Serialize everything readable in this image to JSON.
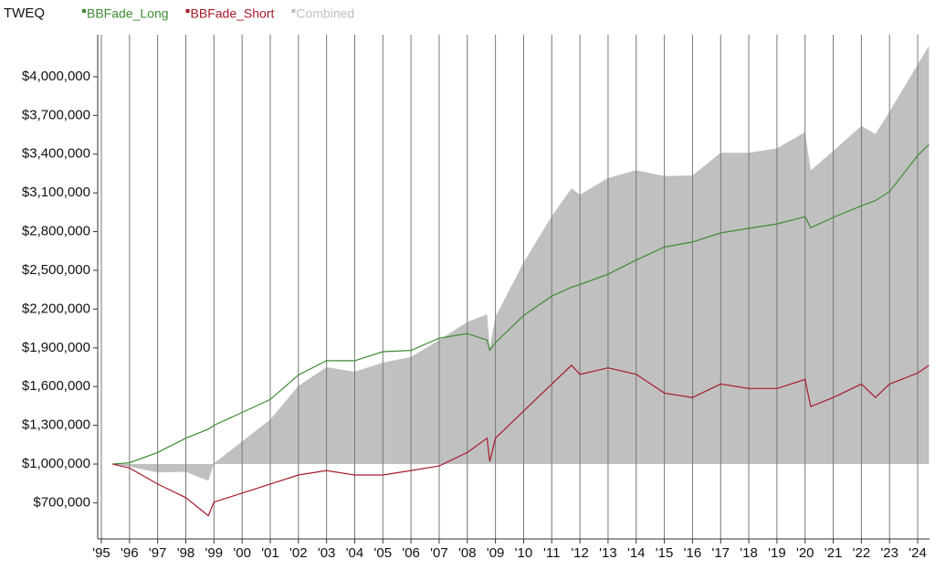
{
  "chart_data": {
    "type": "line",
    "title": "TWEQ",
    "x": [
      1995.4,
      1996,
      1997,
      1998,
      1998.8,
      1999,
      2000,
      2001,
      2002,
      2003,
      2004,
      2005,
      2006,
      2007,
      2008,
      2008.7,
      2008.8,
      2009,
      2010,
      2011,
      2011.7,
      2012,
      2013,
      2014,
      2015,
      2016,
      2017,
      2018,
      2019,
      2020,
      2020.2,
      2021,
      2022,
      2022.5,
      2023,
      2024,
      2024.4
    ],
    "series": [
      {
        "name": "BBFade_Long",
        "color": "#3f8a33",
        "values": [
          1000000,
          1010000,
          1090000,
          1200000,
          1270000,
          1300000,
          1400000,
          1500000,
          1690000,
          1800000,
          1800000,
          1870000,
          1880000,
          1975000,
          2010000,
          1960000,
          1880000,
          1940000,
          2150000,
          2300000,
          2370000,
          2390000,
          2470000,
          2580000,
          2680000,
          2720000,
          2790000,
          2825000,
          2860000,
          2915000,
          2830000,
          2910000,
          3000000,
          3040000,
          3110000,
          3390000,
          3475000
        ]
      },
      {
        "name": "BBFade_Short",
        "color": "#a51c2c",
        "values": [
          1000000,
          970000,
          845000,
          740000,
          600000,
          705000,
          775000,
          845000,
          915000,
          950000,
          915000,
          915000,
          950000,
          985000,
          1090000,
          1200000,
          1020000,
          1200000,
          1410000,
          1620000,
          1765000,
          1695000,
          1745000,
          1695000,
          1550000,
          1515000,
          1620000,
          1585000,
          1585000,
          1655000,
          1445000,
          1515000,
          1620000,
          1515000,
          1620000,
          1705000,
          1765000
        ]
      },
      {
        "name": "Combined",
        "color": "#c0c0c0",
        "fill": true,
        "values": [
          1000000,
          980000,
          935000,
          940000,
          870000,
          1005000,
          1175000,
          1345000,
          1605000,
          1750000,
          1715000,
          1785000,
          1830000,
          1960000,
          2100000,
          2160000,
          1900000,
          2140000,
          2560000,
          2920000,
          3135000,
          3085000,
          3215000,
          3275000,
          3230000,
          3235000,
          3410000,
          3410000,
          3445000,
          3570000,
          3275000,
          3425000,
          3620000,
          3555000,
          3730000,
          4095000,
          4240000
        ]
      }
    ],
    "xlim": [
      1994.87,
      2024.42
    ],
    "ylim": [
      420000,
      4325000
    ],
    "xticks": [
      {
        "value": 1995,
        "label": "'95"
      },
      {
        "value": 1996,
        "label": "'96"
      },
      {
        "value": 1997,
        "label": "'97"
      },
      {
        "value": 1998,
        "label": "'98"
      },
      {
        "value": 1999,
        "label": "'99"
      },
      {
        "value": 2000,
        "label": "'00"
      },
      {
        "value": 2001,
        "label": "'01"
      },
      {
        "value": 2002,
        "label": "'02"
      },
      {
        "value": 2003,
        "label": "'03"
      },
      {
        "value": 2004,
        "label": "'04"
      },
      {
        "value": 2005,
        "label": "'05"
      },
      {
        "value": 2006,
        "label": "'06"
      },
      {
        "value": 2007,
        "label": "'07"
      },
      {
        "value": 2008,
        "label": "'08"
      },
      {
        "value": 2009,
        "label": "'09"
      },
      {
        "value": 2010,
        "label": "'10"
      },
      {
        "value": 2011,
        "label": "'11"
      },
      {
        "value": 2012,
        "label": "'12"
      },
      {
        "value": 2013,
        "label": "'13"
      },
      {
        "value": 2014,
        "label": "'14"
      },
      {
        "value": 2015,
        "label": "'15"
      },
      {
        "value": 2016,
        "label": "'16"
      },
      {
        "value": 2017,
        "label": "'17"
      },
      {
        "value": 2018,
        "label": "'18"
      },
      {
        "value": 2019,
        "label": "'19"
      },
      {
        "value": 2020,
        "label": "'20"
      },
      {
        "value": 2021,
        "label": "'21"
      },
      {
        "value": 2022,
        "label": "'22"
      },
      {
        "value": 2023,
        "label": "'23"
      },
      {
        "value": 2024,
        "label": "'24"
      }
    ],
    "yticks": [
      {
        "value": 700000,
        "label": "$700,000"
      },
      {
        "value": 1000000,
        "label": "$1,000,000"
      },
      {
        "value": 1300000,
        "label": "$1,300,000"
      },
      {
        "value": 1600000,
        "label": "$1,600,000"
      },
      {
        "value": 1900000,
        "label": "$1,900,000"
      },
      {
        "value": 2200000,
        "label": "$2,200,000"
      },
      {
        "value": 2500000,
        "label": "$2,500,000"
      },
      {
        "value": 2800000,
        "label": "$2,800,000"
      },
      {
        "value": 3100000,
        "label": "$3,100,000"
      },
      {
        "value": 3400000,
        "label": "$3,400,000"
      },
      {
        "value": 3700000,
        "label": "$3,700,000"
      },
      {
        "value": 4000000,
        "label": "$4,000,000"
      }
    ],
    "grid": "x"
  }
}
